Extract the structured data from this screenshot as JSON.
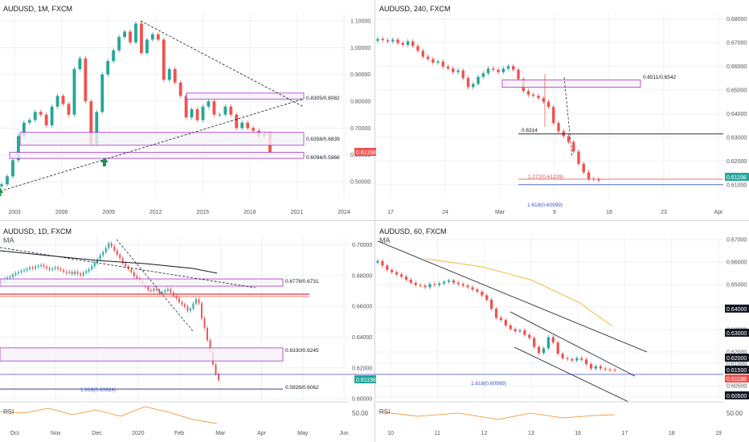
{
  "colors": {
    "up": "#26a69a",
    "down": "#ef5350",
    "zone_stroke": "#b030c8",
    "zone_fill": "#f4f3f6",
    "grid": "#eef0f3",
    "axis_text": "#50535e",
    "price_badge": "#ef5350",
    "price_badge_green": "#26a69a",
    "ma_orange": "#f5b840",
    "rsi_orange": "#ef8a1f",
    "fib_blue": "#3d52c4",
    "fib_red": "#e04848"
  },
  "chart_data": [
    {
      "id": "tl",
      "title": "AUDUSD, 1M, FXCM",
      "type": "candlestick",
      "symbol": "AUDUSD",
      "timeframe": "1M",
      "x_ticks": [
        "2003",
        "2006",
        "2009",
        "2012",
        "2015",
        "2018",
        "2021",
        "2024"
      ],
      "y_ticks": [
        "1.10000",
        "1.00000",
        "0.90000",
        "0.80000",
        "0.70000",
        "0.60000",
        "0.50000"
      ],
      "ylim": [
        0.44,
        1.13
      ],
      "last_price": "0.61198",
      "close_series": [
        0.49,
        0.52,
        0.58,
        0.67,
        0.72,
        0.73,
        0.76,
        0.75,
        0.71,
        0.78,
        0.82,
        0.79,
        0.75,
        0.92,
        0.96,
        0.8,
        0.64,
        0.76,
        0.9,
        0.95,
        0.99,
        1.04,
        1.06,
        1.02,
        1.09,
        0.98,
        1.03,
        1.05,
        1.03,
        0.88,
        0.92,
        0.87,
        0.82,
        0.74,
        0.77,
        0.73,
        0.78,
        0.8,
        0.75,
        0.75,
        0.78,
        0.75,
        0.7,
        0.72,
        0.7,
        0.69,
        0.67,
        0.68,
        0.61
      ],
      "levels": [
        {
          "label": "0.8305/0.8082",
          "top": 0.8305,
          "bottom": 0.8082
        },
        {
          "label": "0.6358/0.6839",
          "top": 0.6839,
          "bottom": 0.6358
        },
        {
          "label": "0.6094/0.5866",
          "top": 0.6094,
          "bottom": 0.5866
        }
      ],
      "arrows": [
        "2001 low",
        "2008 low"
      ]
    },
    {
      "id": "tr",
      "title": "AUDUSD, 240, FXCM",
      "type": "candlestick",
      "symbol": "AUDUSD",
      "timeframe": "240",
      "x_ticks": [
        "17",
        "24",
        "Mar",
        "9",
        "16",
        "23",
        "Apr"
      ],
      "y_ticks": [
        "0.68000",
        "0.67000",
        "0.66000",
        "0.65000",
        "0.64000",
        "0.63000",
        "0.62000",
        "0.61000"
      ],
      "ylim": [
        0.6045,
        0.6825
      ],
      "last_price": "0.61198",
      "close_series": [
        0.6715,
        0.671,
        0.6705,
        0.6712,
        0.6698,
        0.669,
        0.6705,
        0.6685,
        0.6665,
        0.664,
        0.663,
        0.6615,
        0.662,
        0.6598,
        0.659,
        0.6575,
        0.6582,
        0.655,
        0.6512,
        0.6525,
        0.6555,
        0.657,
        0.659,
        0.6585,
        0.6575,
        0.659,
        0.66,
        0.6585,
        0.6545,
        0.6495,
        0.648,
        0.6475,
        0.6465,
        0.645,
        0.6428,
        0.636,
        0.6325,
        0.6305,
        0.628,
        0.624,
        0.6188,
        0.6152,
        0.6125,
        0.6122,
        0.6118
      ],
      "levels": [
        {
          "label": "0.6511/0.6542",
          "top": 0.6542,
          "bottom": 0.6511
        },
        {
          "label": "0.6314",
          "value": 0.6314
        },
        {
          "label": "1.272(0.61229)",
          "value": 0.61229
        },
        {
          "label": "1.618(0.60999)",
          "value": 0.60999
        }
      ]
    },
    {
      "id": "bl",
      "title": "AUDUSD, 1D, FXCM",
      "type": "candlestick",
      "symbol": "AUDUSD",
      "timeframe": "1D",
      "indicator_label": "MA",
      "x_ticks": [
        "Oct",
        "Nov",
        "Dec",
        "2020",
        "Feb",
        "Mar",
        "Apr",
        "May",
        "Jun"
      ],
      "y_ticks": [
        "0.70000",
        "0.68000",
        "0.66000",
        "0.64000",
        "0.62000",
        "0.60000"
      ],
      "ylim": [
        0.599,
        0.7055
      ],
      "last_price": "0.61198",
      "close_series": [
        0.6765,
        0.6775,
        0.6785,
        0.6792,
        0.6805,
        0.6815,
        0.6822,
        0.683,
        0.6835,
        0.6842,
        0.6852,
        0.6845,
        0.6858,
        0.6862,
        0.6868,
        0.6858,
        0.6848,
        0.6838,
        0.6845,
        0.6852,
        0.6842,
        0.6835,
        0.6824,
        0.6818,
        0.6825,
        0.681,
        0.6825,
        0.6812,
        0.6802,
        0.6818,
        0.6828,
        0.684,
        0.686,
        0.6882,
        0.6905,
        0.6932,
        0.6952,
        0.698,
        0.701,
        0.699,
        0.6962,
        0.6935,
        0.6912,
        0.688,
        0.686,
        0.6842,
        0.6822,
        0.6795,
        0.6782,
        0.6765,
        0.6742,
        0.6728,
        0.6705,
        0.6702,
        0.6715,
        0.6705,
        0.6685,
        0.6692,
        0.6702,
        0.6712,
        0.669,
        0.6668,
        0.6652,
        0.6628,
        0.6612,
        0.6598,
        0.6572,
        0.6585,
        0.6618,
        0.6645,
        0.662,
        0.6522,
        0.646,
        0.638,
        0.6305,
        0.6222,
        0.616,
        0.612
      ],
      "levels": [
        {
          "label": "0.6778/0.6731",
          "top": 0.6778,
          "bottom": 0.6731
        },
        {
          "label": "0.6330/0.6245",
          "top": 0.633,
          "bottom": 0.6245
        },
        {
          "label": "0.5926/0.6062",
          "value": 0.6062
        },
        {
          "label": "1.618(0.60624)",
          "value": 0.60624
        }
      ],
      "rsi": {
        "label": "RSI",
        "value_label": "50.00"
      }
    },
    {
      "id": "br",
      "title": "AUDUSD, 60, FXCM",
      "type": "candlestick",
      "symbol": "AUDUSD",
      "timeframe": "60",
      "indicator_label": "MA",
      "x_ticks": [
        "10",
        "11",
        "12",
        "13",
        "16",
        "17",
        "18",
        "19"
      ],
      "y_ticks": [
        "0.67000",
        "0.66000",
        "0.65000",
        "0.64000",
        "0.63000",
        "0.62000",
        "0.61500",
        "0.60500",
        "0.60000"
      ],
      "ylim": [
        0.5985,
        0.6715
      ],
      "last_price": "0.61198",
      "close_series": [
        0.6605,
        0.6585,
        0.6565,
        0.6555,
        0.6545,
        0.6535,
        0.6522,
        0.6508,
        0.6498,
        0.6495,
        0.6488,
        0.6502,
        0.6498,
        0.6505,
        0.6512,
        0.6518,
        0.6508,
        0.6502,
        0.6495,
        0.6488,
        0.6478,
        0.6468,
        0.6452,
        0.6432,
        0.6392,
        0.6352,
        0.6342,
        0.6318,
        0.6302,
        0.6292,
        0.6296,
        0.6276,
        0.6262,
        0.6222,
        0.6195,
        0.6216,
        0.6266,
        0.6242,
        0.6192,
        0.6172,
        0.6168,
        0.6162,
        0.6172,
        0.6166,
        0.6146,
        0.6126,
        0.6136,
        0.6126,
        0.6122,
        0.612,
        0.6119
      ],
      "price_labels": [
        "0.64000",
        "0.63000",
        "0.62000",
        "0.61500",
        "0.61198",
        "0.60500"
      ],
      "levels": [
        {
          "label": "1.618(0.60999)",
          "value": 0.60999
        }
      ],
      "rsi": {
        "label": "RSI",
        "value_label": "50.00"
      }
    }
  ]
}
